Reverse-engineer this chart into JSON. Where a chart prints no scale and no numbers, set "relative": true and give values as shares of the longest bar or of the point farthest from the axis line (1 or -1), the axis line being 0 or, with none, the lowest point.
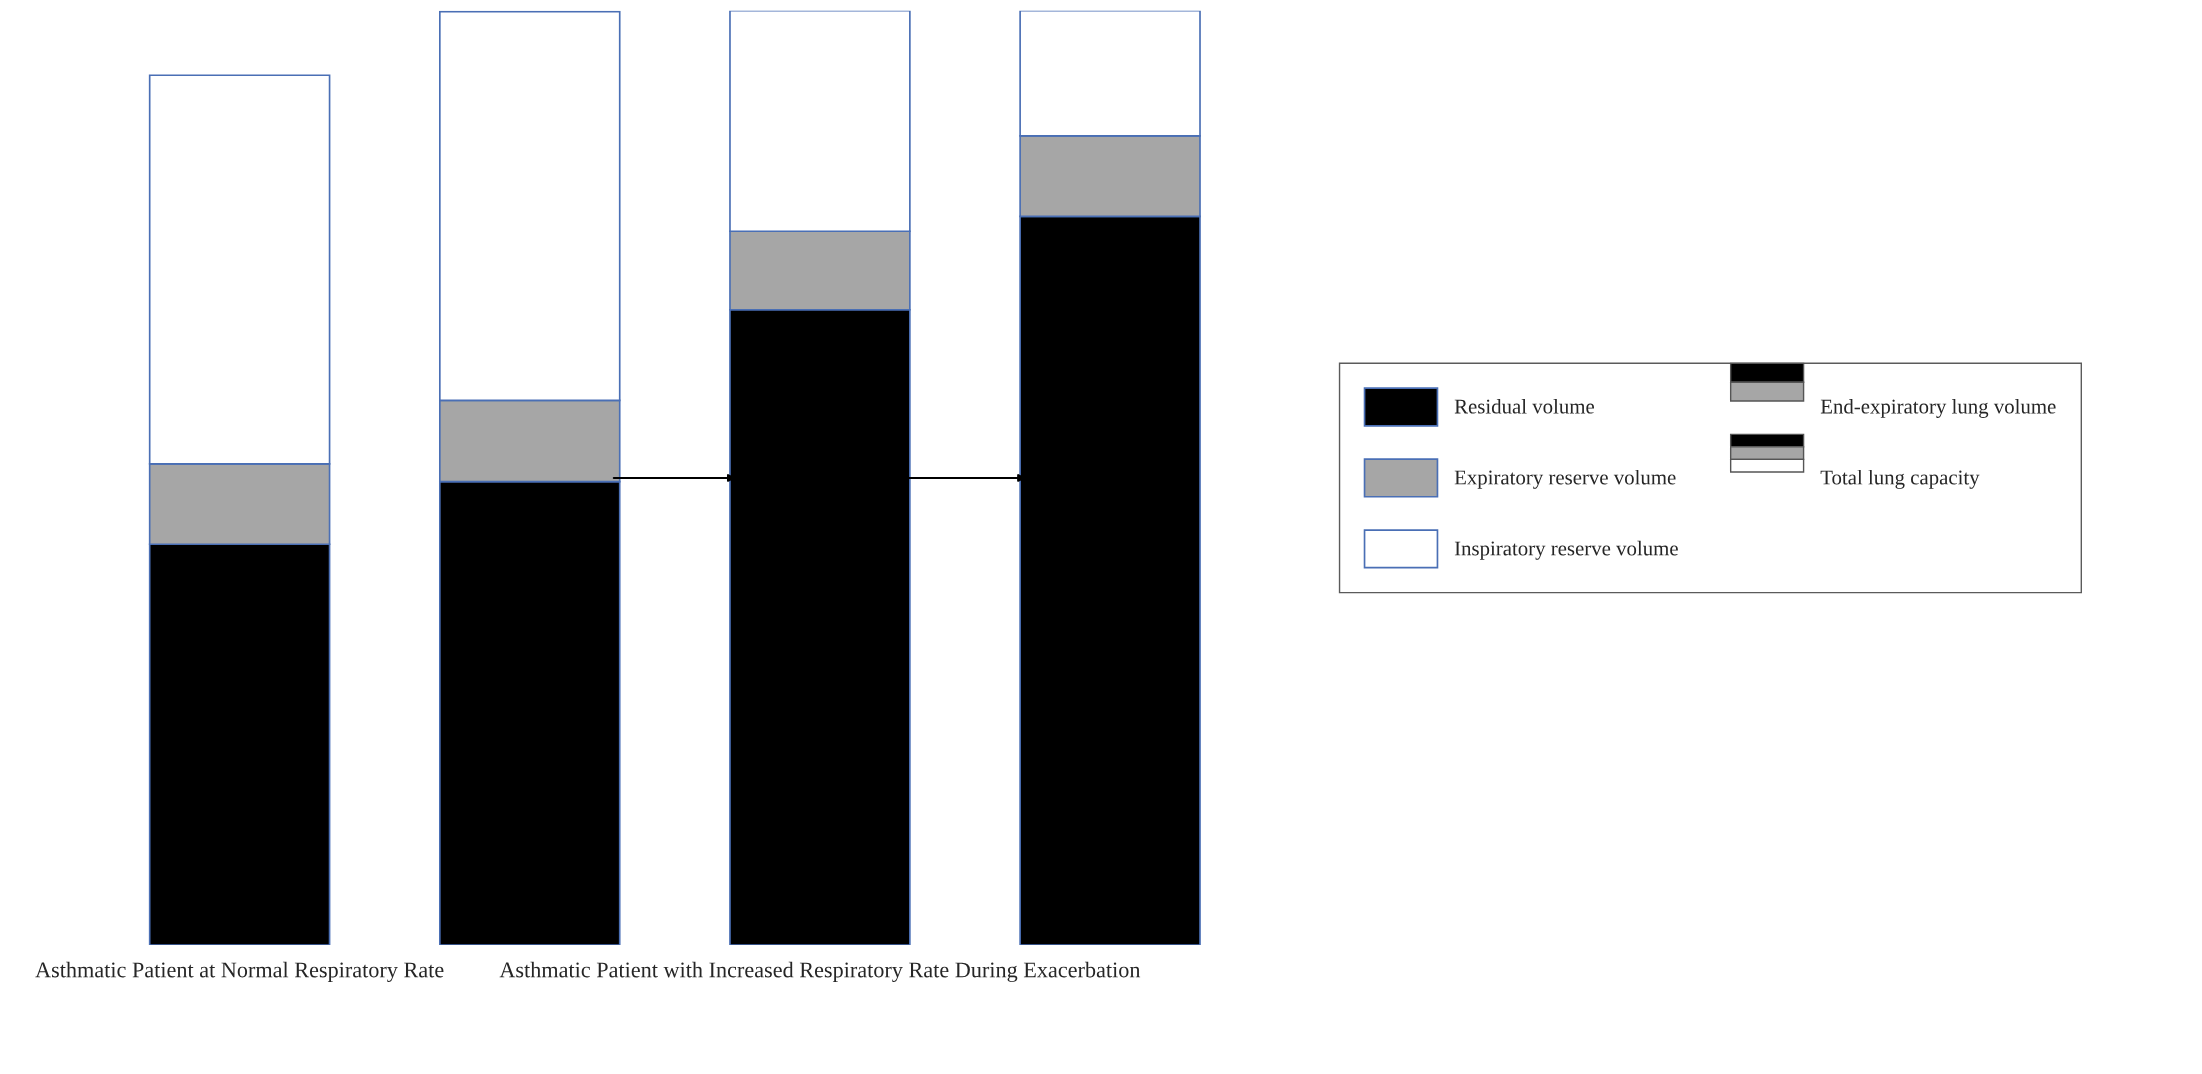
{
  "chart_data": {
    "type": "bar",
    "stacked": true,
    "relative": true,
    "legend": "right",
    "categories": [
      "Asthmatic Patient at Normal Respiratory Rate",
      null,
      "Asthmatic Patient with Increased Respiratory Rate During Exacerbation",
      null
    ],
    "series": [
      {
        "name": "Residual volume",
        "color": "#000000",
        "values": [
          0.429,
          0.496,
          0.68,
          0.78
        ]
      },
      {
        "name": "Expiratory reserve volume",
        "color": "#a6a6a6",
        "values": [
          0.086,
          0.087,
          0.084,
          0.086
        ]
      },
      {
        "name": "Inspiratory reserve volume",
        "color": "#ffffff",
        "values": [
          0.416,
          0.416,
          0.236,
          0.134
        ]
      }
    ],
    "annotations": [
      "End-expiratory lung volume",
      "Total lung capacity"
    ]
  }
}
